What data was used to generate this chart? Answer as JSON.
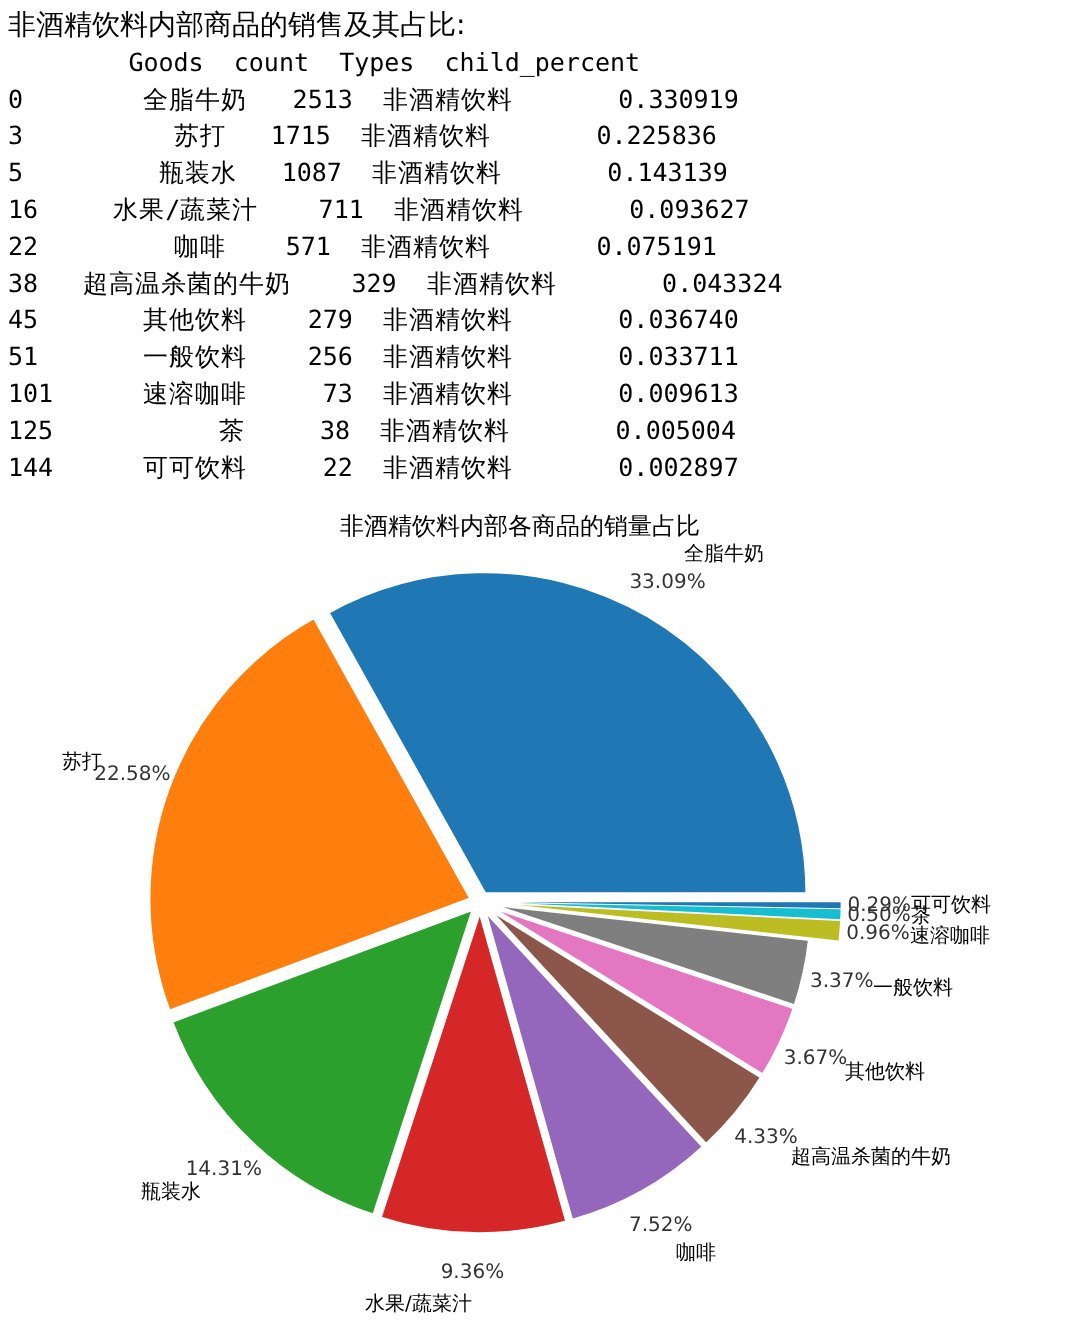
{
  "chart_data": {
    "type": "pie",
    "title": "非酒精饮料内部各商品的销量占比",
    "annotations": [
      "非酒精饮料内部商品的销售及其占比:",
      "        Goods  count  Types  child_percent",
      "0        全脂牛奶   2513  非酒精饮料       0.330919",
      "3          苏打   1715  非酒精饮料       0.225836",
      "5         瓶装水   1087  非酒精饮料       0.143139",
      "16     水果/蔬菜汁    711  非酒精饮料       0.093627",
      "22         咖啡    571  非酒精饮料       0.075191",
      "38   超高温杀菌的牛奶    329  非酒精饮料       0.043324",
      "45       其他饮料    279  非酒精饮料       0.036740",
      "51       一般饮料    256  非酒精饮料       0.033711",
      "101      速溶咖啡     73  非酒精饮料       0.009613",
      "125           茶     38  非酒精饮料       0.005004",
      "144      可可饮料     22  非酒精饮料       0.002897"
    ],
    "categories": [
      "全脂牛奶",
      "苏打",
      "瓶装水",
      "水果/蔬菜汁",
      "咖啡",
      "超高温杀菌的牛奶",
      "其他饮料",
      "一般饮料",
      "速溶咖啡",
      "茶",
      "可可饮料"
    ],
    "values": [
      33.09,
      22.58,
      14.31,
      9.36,
      7.52,
      4.33,
      3.67,
      3.37,
      0.96,
      0.5,
      0.29
    ],
    "value_labels": [
      "33.09%",
      "22.58%",
      "14.31%",
      "9.36%",
      "7.52%",
      "4.33%",
      "3.67%",
      "3.37%",
      "0.96%",
      "0.50%",
      "0.29%"
    ],
    "colors": [
      "#1f77b4",
      "#ff7f0e",
      "#2ca02c",
      "#d62728",
      "#9467bd",
      "#8c564b",
      "#e377c2",
      "#7f7f7f",
      "#bcbd22",
      "#17becf",
      "#1f77b4"
    ]
  }
}
